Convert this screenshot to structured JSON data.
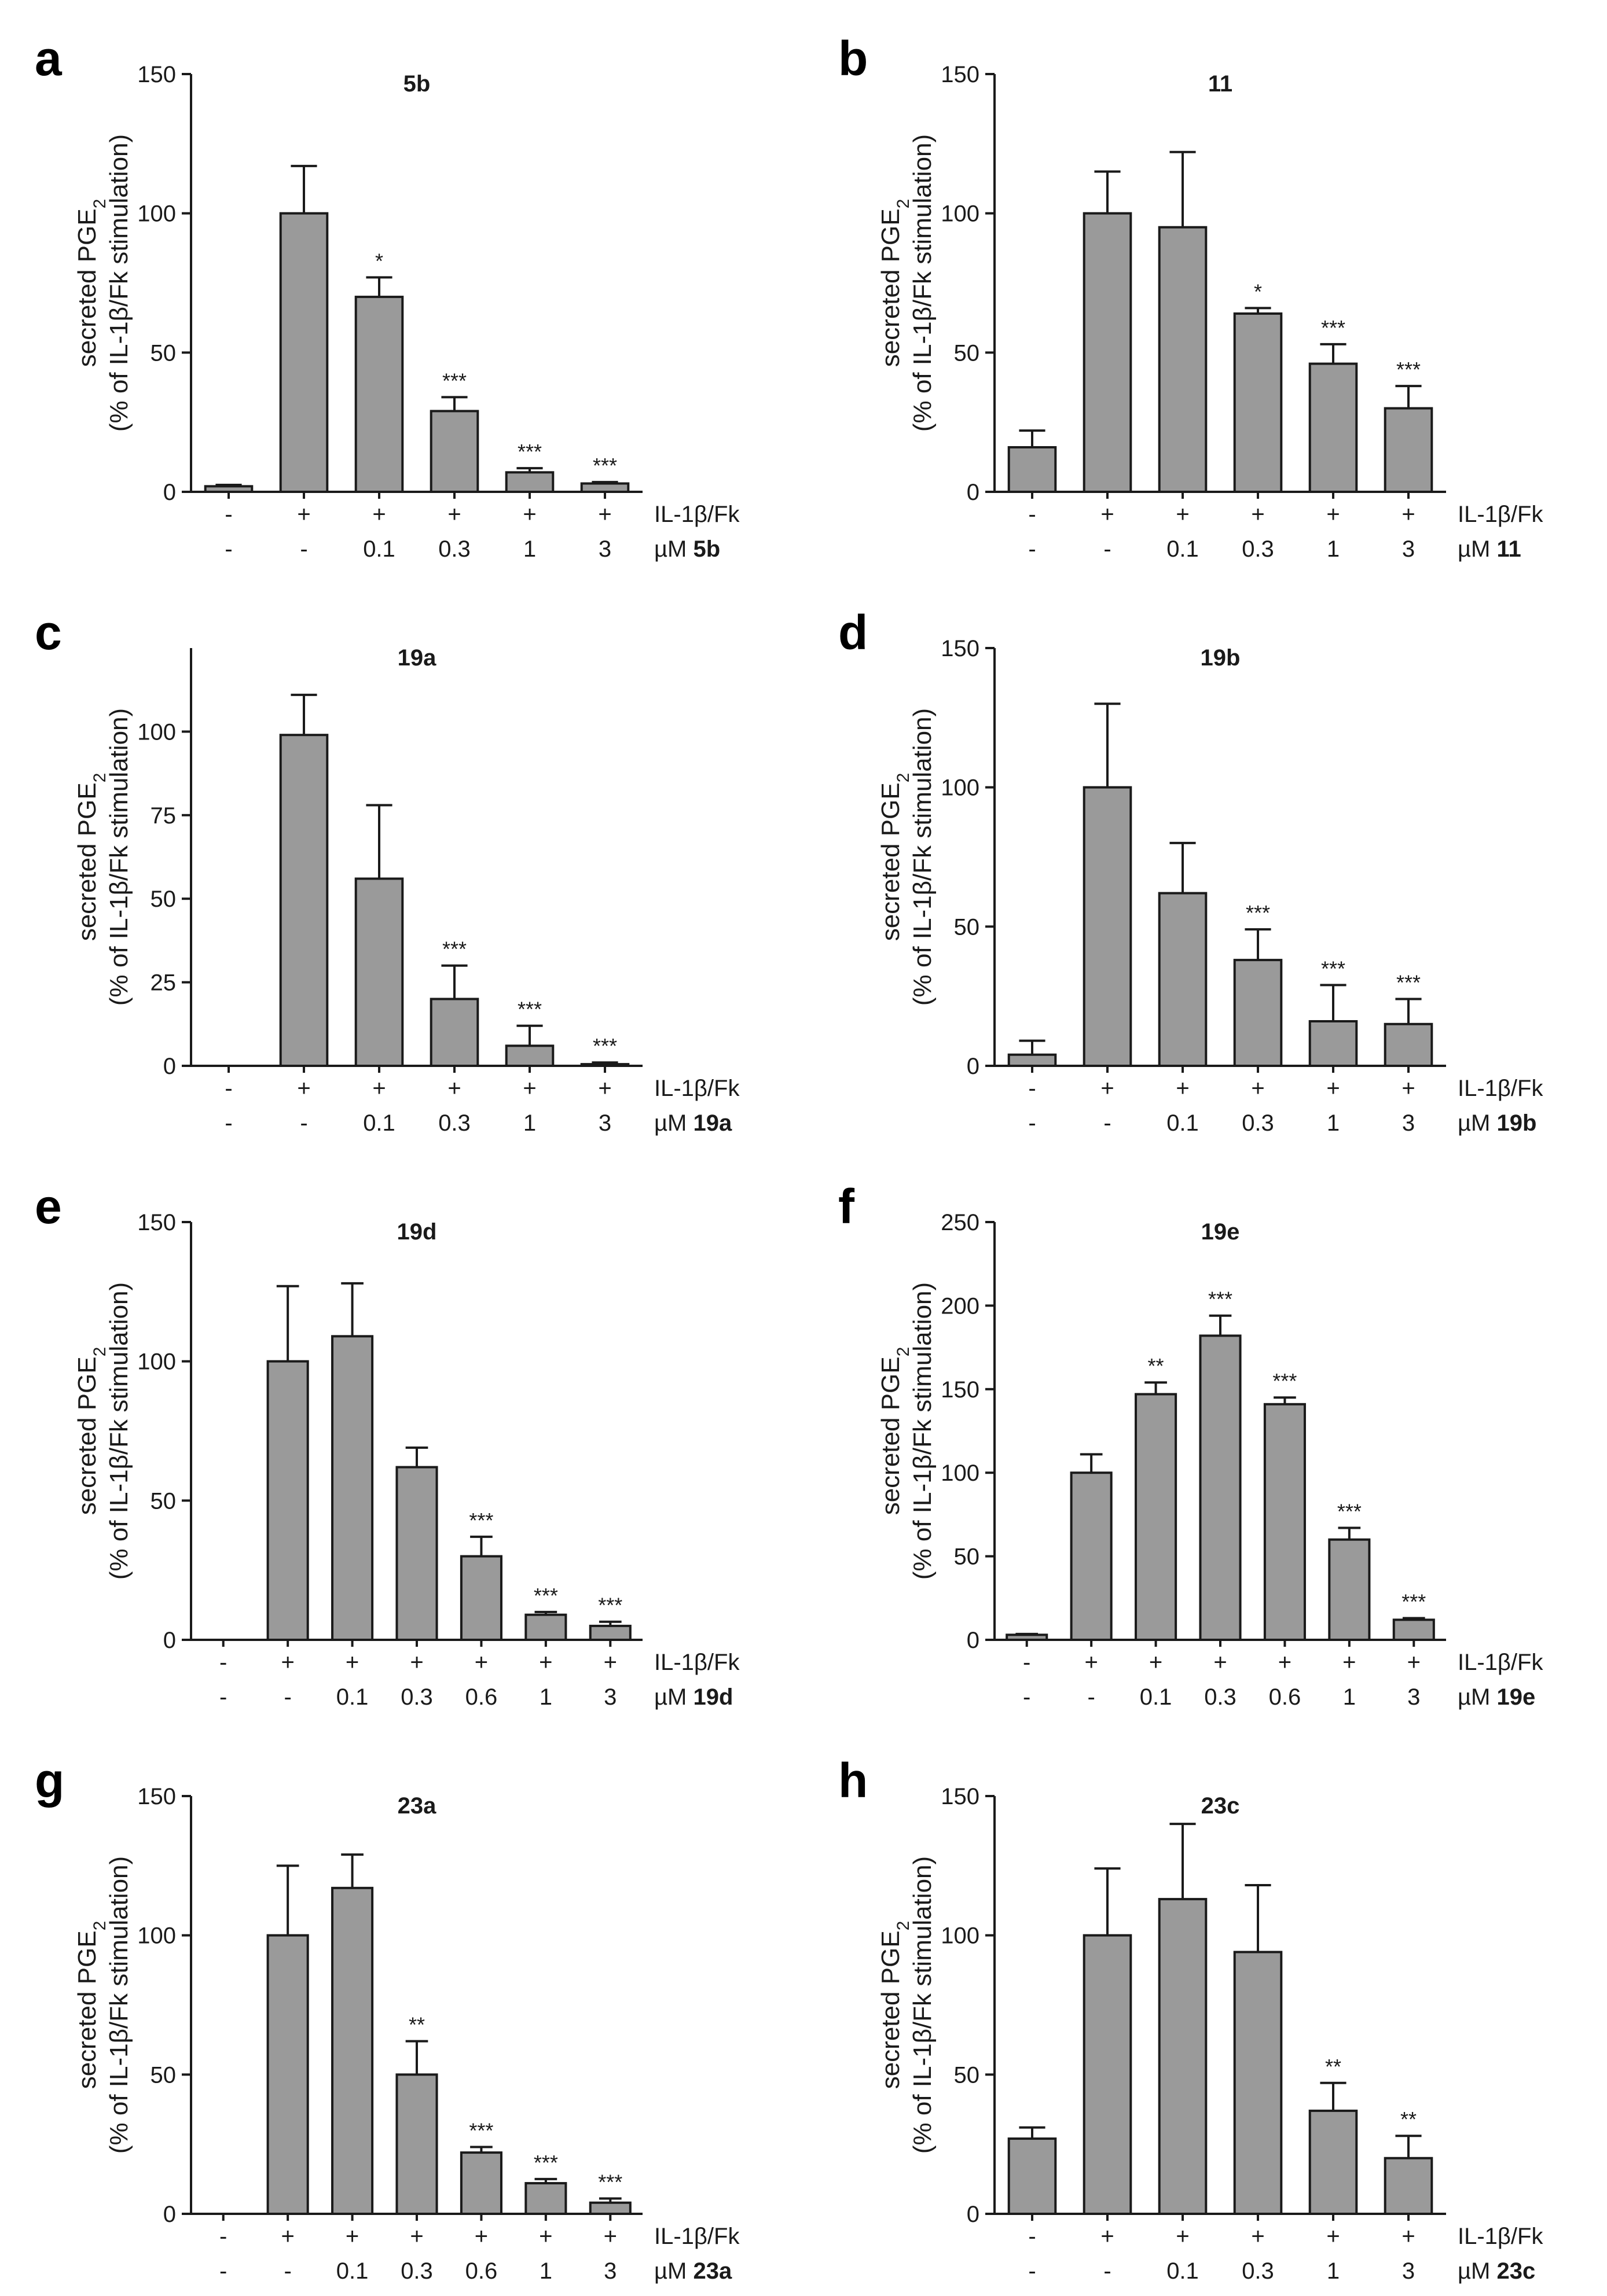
{
  "chart_data": [
    {
      "type": "bar",
      "panel": "a",
      "title": "5b",
      "ylabel_line1": "secreted PGE",
      "ylabel_sub": "2",
      "ylabel_line2": "(% of IL-1β/Fk stimulation)",
      "ylim": [
        0,
        150
      ],
      "yticks": [
        0,
        50,
        100,
        150
      ],
      "values": [
        2,
        100,
        70,
        29,
        7,
        3
      ],
      "errors": [
        0.5,
        17,
        7,
        5,
        1.5,
        0.5
      ],
      "significance": [
        "",
        "",
        "*",
        "***",
        "***",
        "***"
      ],
      "row1_labels": [
        "-",
        "+",
        "+",
        "+",
        "+",
        "+"
      ],
      "row1_name": "IL-1β/Fk",
      "row2_labels": [
        "-",
        "-",
        "0.1",
        "0.3",
        "1",
        "3"
      ],
      "row2_unit": "µM",
      "row2_compound": "5b"
    },
    {
      "type": "bar",
      "panel": "b",
      "title": "11",
      "ylabel_line1": "secreted PGE",
      "ylabel_sub": "2",
      "ylabel_line2": "(% of IL-1β/Fk stimulation)",
      "ylim": [
        0,
        150
      ],
      "yticks": [
        0,
        50,
        100,
        150
      ],
      "values": [
        16,
        100,
        95,
        64,
        46,
        30
      ],
      "errors": [
        6,
        15,
        27,
        2,
        7,
        8
      ],
      "significance": [
        "",
        "",
        "",
        "*",
        "***",
        "***"
      ],
      "row1_labels": [
        "-",
        "+",
        "+",
        "+",
        "+",
        "+"
      ],
      "row1_name": "IL-1β/Fk",
      "row2_labels": [
        "-",
        "-",
        "0.1",
        "0.3",
        "1",
        "3"
      ],
      "row2_unit": "µM",
      "row2_compound": "11"
    },
    {
      "type": "bar",
      "panel": "c",
      "title": "19a",
      "ylabel_line1": "secreted PGE",
      "ylabel_sub": "2",
      "ylabel_line2": "(% of IL-1β/Fk stimulation)",
      "ylim": [
        0,
        125
      ],
      "yticks": [
        0,
        25,
        50,
        75,
        100
      ],
      "values": [
        0,
        99,
        56,
        20,
        6,
        0.5
      ],
      "errors": [
        0,
        12,
        22,
        10,
        6,
        0.5
      ],
      "significance": [
        "",
        "",
        "",
        "***",
        "***",
        "***"
      ],
      "row1_labels": [
        "-",
        "+",
        "+",
        "+",
        "+",
        "+"
      ],
      "row1_name": "IL-1β/Fk",
      "row2_labels": [
        "-",
        "-",
        "0.1",
        "0.3",
        "1",
        "3"
      ],
      "row2_unit": "µM",
      "row2_compound": "19a"
    },
    {
      "type": "bar",
      "panel": "d",
      "title": "19b",
      "ylabel_line1": "secreted PGE",
      "ylabel_sub": "2",
      "ylabel_line2": "(% of IL-1β/Fk stimulation)",
      "ylim": [
        0,
        150
      ],
      "yticks": [
        0,
        50,
        100,
        150
      ],
      "values": [
        4,
        100,
        62,
        38,
        16,
        15
      ],
      "errors": [
        5,
        30,
        18,
        11,
        13,
        9
      ],
      "significance": [
        "",
        "",
        "",
        "***",
        "***",
        "***"
      ],
      "row1_labels": [
        "-",
        "+",
        "+",
        "+",
        "+",
        "+"
      ],
      "row1_name": "IL-1β/Fk",
      "row2_labels": [
        "-",
        "-",
        "0.1",
        "0.3",
        "1",
        "3"
      ],
      "row2_unit": "µM",
      "row2_compound": "19b"
    },
    {
      "type": "bar",
      "panel": "e",
      "title": "19d",
      "ylabel_line1": "secreted PGE",
      "ylabel_sub": "2",
      "ylabel_line2": "(% of IL-1β/Fk stimulation)",
      "ylim": [
        0,
        150
      ],
      "yticks": [
        0,
        50,
        100,
        150
      ],
      "values": [
        0,
        100,
        109,
        62,
        30,
        9,
        5
      ],
      "errors": [
        0,
        27,
        19,
        7,
        7,
        1,
        1.5
      ],
      "significance": [
        "",
        "",
        "",
        "",
        "***",
        "***",
        "***"
      ],
      "row1_labels": [
        "-",
        "+",
        "+",
        "+",
        "+",
        "+",
        "+"
      ],
      "row1_name": "IL-1β/Fk",
      "row2_labels": [
        "-",
        "-",
        "0.1",
        "0.3",
        "0.6",
        "1",
        "3"
      ],
      "row2_unit": "µM",
      "row2_compound": "19d"
    },
    {
      "type": "bar",
      "panel": "f",
      "title": "19e",
      "ylabel_line1": "secreted PGE",
      "ylabel_sub": "2",
      "ylabel_line2": "(% of IL-1β/Fk stimulation)",
      "ylim": [
        0,
        250
      ],
      "yticks": [
        0,
        50,
        100,
        150,
        200,
        250
      ],
      "values": [
        3,
        100,
        147,
        182,
        141,
        60,
        12
      ],
      "errors": [
        0.5,
        11,
        7,
        12,
        4,
        7,
        1
      ],
      "significance": [
        "",
        "",
        "**",
        "***",
        "***",
        "***",
        "***"
      ],
      "row1_labels": [
        "-",
        "+",
        "+",
        "+",
        "+",
        "+",
        "+"
      ],
      "row1_name": "IL-1β/Fk",
      "row2_labels": [
        "-",
        "-",
        "0.1",
        "0.3",
        "0.6",
        "1",
        "3"
      ],
      "row2_unit": "µM",
      "row2_compound": "19e"
    },
    {
      "type": "bar",
      "panel": "g",
      "title": "23a",
      "ylabel_line1": "secreted PGE",
      "ylabel_sub": "2",
      "ylabel_line2": "(% of IL-1β/Fk stimulation)",
      "ylim": [
        0,
        150
      ],
      "yticks": [
        0,
        50,
        100,
        150
      ],
      "values": [
        0,
        100,
        117,
        50,
        22,
        11,
        4
      ],
      "errors": [
        0,
        25,
        12,
        12,
        2,
        1.5,
        1.5
      ],
      "significance": [
        "",
        "",
        "",
        "**",
        "***",
        "***",
        "***"
      ],
      "row1_labels": [
        "-",
        "+",
        "+",
        "+",
        "+",
        "+",
        "+"
      ],
      "row1_name": "IL-1β/Fk",
      "row2_labels": [
        "-",
        "-",
        "0.1",
        "0.3",
        "0.6",
        "1",
        "3"
      ],
      "row2_unit": "µM",
      "row2_compound": "23a"
    },
    {
      "type": "bar",
      "panel": "h",
      "title": "23c",
      "ylabel_line1": "secreted PGE",
      "ylabel_sub": "2",
      "ylabel_line2": "(% of IL-1β/Fk stimulation)",
      "ylim": [
        0,
        150
      ],
      "yticks": [
        0,
        50,
        100,
        150
      ],
      "values": [
        27,
        100,
        113,
        94,
        37,
        20
      ],
      "errors": [
        4,
        24,
        27,
        24,
        10,
        8
      ],
      "significance": [
        "",
        "",
        "",
        "",
        "**",
        "**"
      ],
      "row1_labels": [
        "-",
        "+",
        "+",
        "+",
        "+",
        "+"
      ],
      "row1_name": "IL-1β/Fk",
      "row2_labels": [
        "-",
        "-",
        "0.1",
        "0.3",
        "1",
        "3"
      ],
      "row2_unit": "µM",
      "row2_compound": "23c"
    }
  ]
}
